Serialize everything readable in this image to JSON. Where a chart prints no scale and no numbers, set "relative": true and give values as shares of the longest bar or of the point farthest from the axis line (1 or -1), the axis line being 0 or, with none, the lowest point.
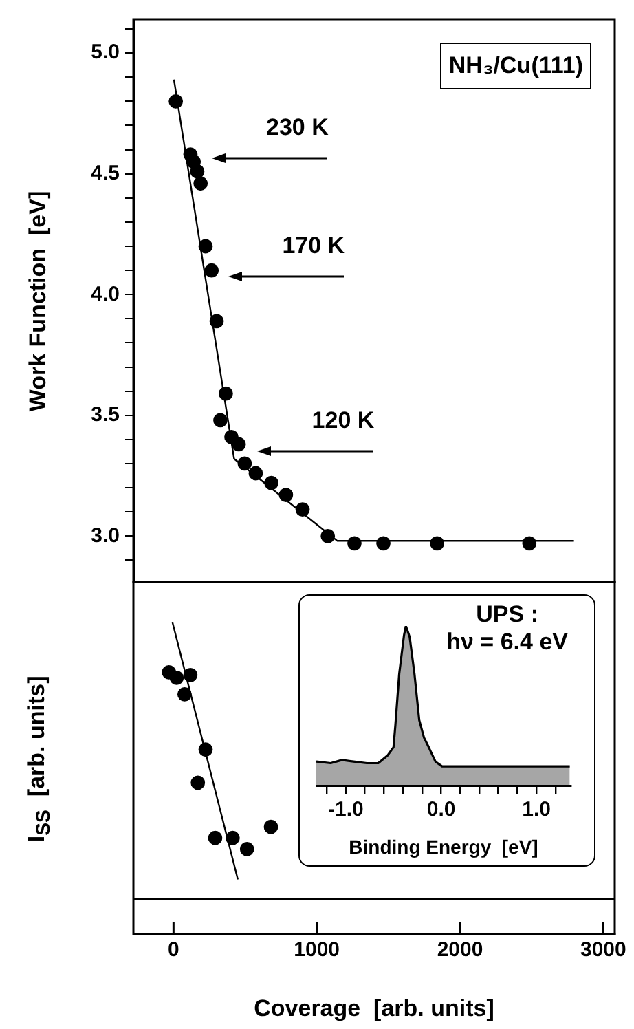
{
  "chart_data": [
    {
      "type": "scatter",
      "ylabel": "Work Function  [eV]",
      "xlim": [
        -280,
        3080
      ],
      "ylim": [
        2.81,
        5.14
      ],
      "yticks": [
        {
          "value": 2.9,
          "label": null
        },
        {
          "value": 3,
          "label": "3.0"
        },
        {
          "value": 3.1,
          "label": null
        },
        {
          "value": 3.2,
          "label": null
        },
        {
          "value": 3.3,
          "label": null
        },
        {
          "value": 3.4,
          "label": null
        },
        {
          "value": 3.5,
          "label": "3.5"
        },
        {
          "value": 3.6,
          "label": null
        },
        {
          "value": 3.7,
          "label": null
        },
        {
          "value": 3.8,
          "label": null
        },
        {
          "value": 3.9,
          "label": null
        },
        {
          "value": 4,
          "label": "4.0"
        },
        {
          "value": 4.1,
          "label": null
        },
        {
          "value": 4.2,
          "label": null
        },
        {
          "value": 4.3,
          "label": null
        },
        {
          "value": 4.4,
          "label": null
        },
        {
          "value": 4.5,
          "label": "4.5"
        },
        {
          "value": 4.6,
          "label": null
        },
        {
          "value": 4.7,
          "label": null
        },
        {
          "value": 4.8,
          "label": null
        },
        {
          "value": 4.9,
          "label": null
        },
        {
          "value": 5,
          "label": "5.0"
        },
        {
          "value": 5.1,
          "label": null
        }
      ],
      "tick_labels": "y",
      "annotations": [
        "NH₃/Cu(111)",
        "230 K",
        "170 K",
        "120 K"
      ],
      "series": [
        {
          "type": "scatter",
          "marker": "circle",
          "color": "#000000",
          "x": [
            16,
            118,
            141,
            166,
            189,
            224,
            266,
            301,
            365,
            327,
            404,
            455,
            497,
            574,
            683,
            785,
            901,
            1077,
            1263,
            1465,
            1840,
            2484
          ],
          "values": [
            4.8,
            4.58,
            4.55,
            4.51,
            4.46,
            4.2,
            4.1,
            3.89,
            3.59,
            3.48,
            3.41,
            3.38,
            3.3,
            3.26,
            3.22,
            3.17,
            3.11,
            3.0,
            2.97,
            2.97,
            2.97,
            2.97
          ]
        },
        {
          "type": "line",
          "marker": "none",
          "color": "#000000",
          "x": [
            3,
            423,
            1144,
            2795
          ],
          "values": [
            4.89,
            3.32,
            2.98,
            2.98
          ]
        }
      ]
    },
    {
      "type": "scatter",
      "relative": true,
      "ylabel": "I$_{SS}$  [arb. units]",
      "xlabel": "Coverage  [arb. units]",
      "xlim": [
        -280,
        3080
      ],
      "xticks": [
        0,
        1000,
        2000,
        3000
      ],
      "tick_labels": "x",
      "ref_lines": [
        {
          "axis": "y",
          "value": 0
        }
      ],
      "series": [
        {
          "type": "scatter",
          "marker": "circle",
          "color": "#000000",
          "x": [
            -32,
            22,
            118,
            77,
            224,
            170,
            291,
            413,
            513,
            680
          ],
          "values": [
            0.82,
            0.8,
            0.81,
            0.74,
            0.54,
            0.42,
            0.22,
            0.22,
            0.18,
            0.26
          ]
        },
        {
          "type": "line",
          "marker": "none",
          "color": "#000000",
          "x": [
            -7,
            449
          ],
          "values": [
            1,
            0.07
          ]
        }
      ]
    },
    {
      "type": "area",
      "relative": true,
      "xlabel": "Binding Energy  [eV]",
      "xlim": [
        -1.31,
        1.36
      ],
      "xticks": [
        {
          "value": -1.2,
          "label": null
        },
        {
          "value": -1,
          "label": "-1.0"
        },
        {
          "value": -0.8,
          "label": null
        },
        {
          "value": -0.6,
          "label": null
        },
        {
          "value": -0.4,
          "label": null
        },
        {
          "value": -0.2,
          "label": null
        },
        {
          "value": 0,
          "label": "0.0"
        },
        {
          "value": 0.2,
          "label": null
        },
        {
          "value": 0.4,
          "label": null
        },
        {
          "value": 0.6,
          "label": null
        },
        {
          "value": 0.8,
          "label": null
        },
        {
          "value": 1,
          "label": "1.0"
        },
        {
          "value": 1.2,
          "label": null
        }
      ],
      "tick_labels": "x",
      "annotations": [
        "UPS :",
        "hν = 6.4 eV"
      ],
      "color": "#000000",
      "x": [
        -1.31,
        -1.16,
        -1.04,
        -0.92,
        -0.78,
        -0.66,
        -0.56,
        -0.5,
        -0.48,
        -0.44,
        -0.39,
        -0.37,
        -0.33,
        -0.28,
        -0.23,
        -0.18,
        -0.13,
        -0.06,
        0.01,
        1.35
      ],
      "values": [
        0.15,
        0.14,
        0.16,
        0.15,
        0.14,
        0.14,
        0.19,
        0.24,
        0.38,
        0.7,
        0.94,
        1,
        0.93,
        0.7,
        0.41,
        0.3,
        0.24,
        0.15,
        0.12,
        0.12
      ]
    }
  ]
}
